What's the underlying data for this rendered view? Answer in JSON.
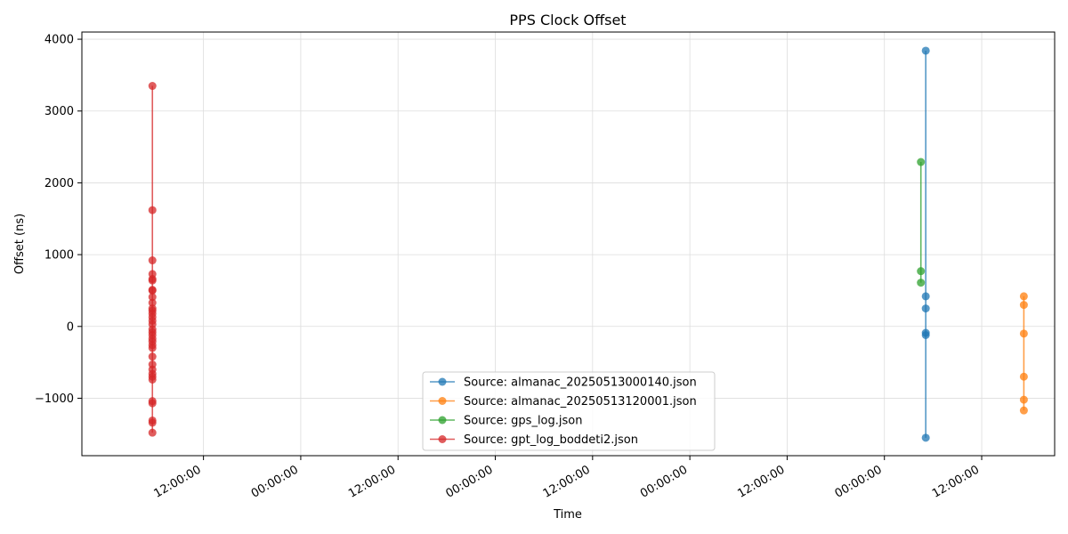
{
  "chart_data": {
    "type": "line",
    "title": "PPS Clock Offset",
    "xlabel": "Time",
    "ylabel": "Offset (ns)",
    "grid": true,
    "legend_position": "bottom-center",
    "x_axis": {
      "type": "time",
      "range": [
        -15,
        105
      ],
      "units": "hours",
      "ticks": [
        0,
        12,
        24,
        36,
        48,
        60,
        72,
        84,
        96
      ],
      "tick_labels": [
        "12:00:00",
        "00:00:00",
        "12:00:00",
        "00:00:00",
        "12:00:00",
        "00:00:00",
        "12:00:00",
        "00:00:00",
        "12:00:00"
      ]
    },
    "y_axis": {
      "range": [
        -1800,
        4100
      ],
      "ticks": [
        -1000,
        0,
        1000,
        2000,
        3000,
        4000
      ],
      "tick_labels": [
        "−1000",
        "0",
        "1000",
        "2000",
        "3000",
        "4000"
      ]
    },
    "series": [
      {
        "name": "Source: almanac_20250513000140.json",
        "color": "#1f77b4",
        "x": [
          89.1,
          89.1,
          89.1,
          89.1,
          89.1,
          89.1
        ],
        "y": [
          3840,
          420,
          250,
          -90,
          -120,
          -1550
        ]
      },
      {
        "name": "Source: almanac_20250513120001.json",
        "color": "#ff7f0e",
        "x": [
          101.2,
          101.2,
          101.2,
          101.2,
          101.2,
          101.2
        ],
        "y": [
          420,
          300,
          -100,
          -700,
          -1020,
          -1170
        ]
      },
      {
        "name": "Source: gps_log.json",
        "color": "#2ca02c",
        "x": [
          88.5,
          88.5,
          88.5
        ],
        "y": [
          2290,
          770,
          610
        ]
      },
      {
        "name": "Source: gpt_log_boddeti2.json",
        "color": "#d62728",
        "x": [
          -6.3,
          -6.3,
          -6.3,
          -6.3,
          -6.3,
          -6.3,
          -6.3,
          -6.3,
          -6.3,
          -6.3,
          -6.3,
          -6.3,
          -6.3,
          -6.3,
          -6.3,
          -6.3,
          -6.3,
          -6.3,
          -6.3,
          -6.3,
          -6.3,
          -6.3,
          -6.3,
          -6.3,
          -6.3,
          -6.3,
          -6.3,
          -6.3,
          -6.3,
          -6.3,
          -6.3,
          -6.3,
          -6.3,
          -6.3
        ],
        "y": [
          3350,
          1620,
          920,
          730,
          660,
          640,
          510,
          500,
          410,
          330,
          250,
          220,
          180,
          130,
          80,
          30,
          -40,
          -80,
          -120,
          -170,
          -210,
          -260,
          -300,
          -420,
          -530,
          -600,
          -660,
          -700,
          -740,
          -1040,
          -1070,
          -1310,
          -1340,
          -1480
        ]
      }
    ]
  }
}
